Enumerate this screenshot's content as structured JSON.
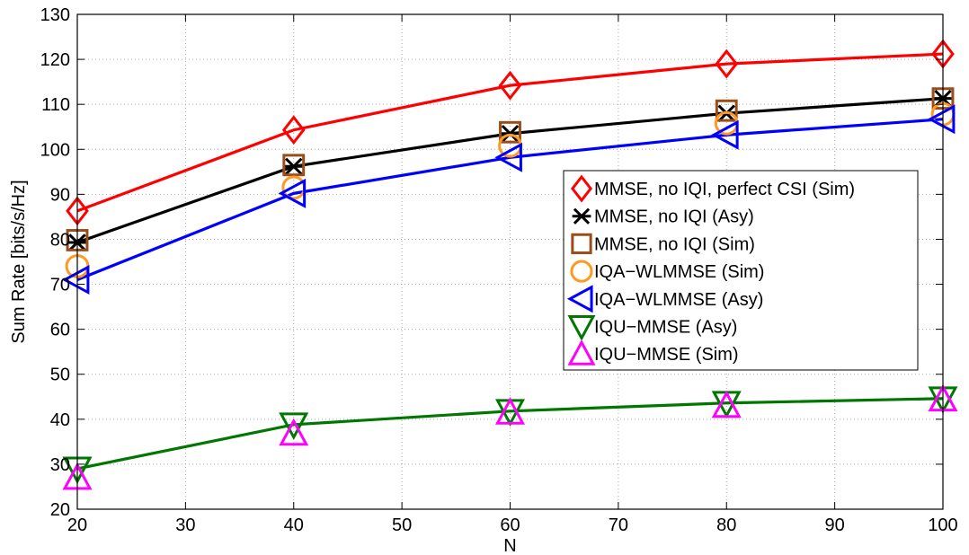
{
  "chart_data": {
    "type": "line",
    "title": "",
    "xlabel": "N",
    "ylabel": "Sum Rate [bits/s/Hz]",
    "xlim": [
      20,
      100
    ],
    "ylim": [
      20,
      130
    ],
    "xticks": [
      20,
      30,
      40,
      50,
      60,
      70,
      80,
      90,
      100
    ],
    "yticks": [
      20,
      30,
      40,
      50,
      60,
      70,
      80,
      90,
      100,
      110,
      120,
      130
    ],
    "grid": true,
    "legend_position": "right",
    "series": [
      {
        "name": "MMSE, no IQI, perfect CSI (Sim)",
        "color": "#ff0000",
        "marker": "diamond",
        "line": true,
        "x": [
          20,
          40,
          60,
          80,
          100
        ],
        "y": [
          86.3,
          104.3,
          114.2,
          119.0,
          121.2
        ]
      },
      {
        "name": "MMSE, no IQI (Asy)",
        "color": "#000000",
        "marker": "asterisk",
        "line": true,
        "x": [
          20,
          40,
          60,
          80,
          100
        ],
        "y": [
          79.3,
          96.2,
          103.5,
          108.0,
          111.3
        ]
      },
      {
        "name": "MMSE, no IQI (Sim)",
        "color": "#994d1a",
        "marker": "square",
        "line": false,
        "x": [
          20,
          40,
          60,
          80,
          100
        ],
        "y": [
          79.8,
          96.5,
          103.8,
          108.6,
          111.3
        ]
      },
      {
        "name": "IQA−WLMMSE (Sim)",
        "color": "#ff9922",
        "marker": "circle",
        "line": false,
        "x": [
          20,
          40,
          60,
          80,
          100
        ],
        "y": [
          74.0,
          91.5,
          100.8,
          105.8,
          107.8
        ]
      },
      {
        "name": "IQA−WLMMSE (Asy)",
        "color": "#0000ff",
        "marker": "triangle-left",
        "line": true,
        "x": [
          20,
          40,
          60,
          80,
          100
        ],
        "y": [
          71.0,
          90.2,
          98.2,
          103.2,
          106.7
        ]
      },
      {
        "name": "IQU−MMSE (Asy)",
        "color": "#007700",
        "marker": "triangle-down",
        "line": true,
        "x": [
          20,
          40,
          60,
          80,
          100
        ],
        "y": [
          29.0,
          38.8,
          41.8,
          43.6,
          44.6
        ]
      },
      {
        "name": "IQU−MMSE (Sim)",
        "color": "#ff00ff",
        "marker": "triangle-up",
        "line": false,
        "x": [
          20,
          40,
          60,
          80,
          100
        ],
        "y": [
          27.0,
          36.8,
          41.5,
          43.0,
          44.4
        ]
      }
    ]
  }
}
